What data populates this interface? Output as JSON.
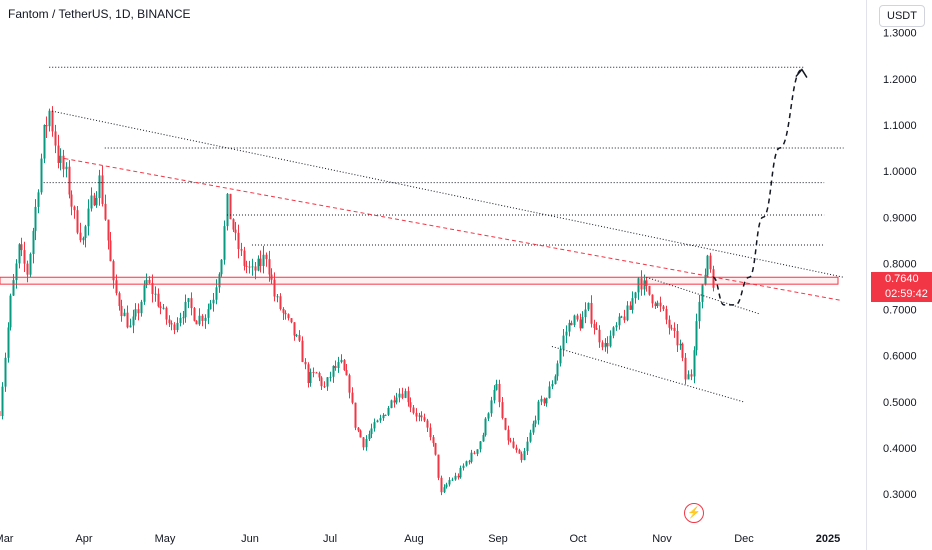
{
  "header": {
    "symbol_title": "Fantom / TetherUS, 1D, BINANCE",
    "currency_button": "USDT"
  },
  "price_label": {
    "price": "0.7640",
    "countdown": "02:59:42"
  },
  "colors": {
    "up": "#089981",
    "down": "#f23645",
    "accent_red": "#f23645"
  },
  "chart_data": {
    "type": "candlestick",
    "title": "Fantom / TetherUS, 1D, BINANCE",
    "ylim": [
      0.24,
      1.36
    ],
    "y_ticks": [
      "1.3000",
      "1.2000",
      "1.1000",
      "1.0000",
      "0.9000",
      "0.8000",
      "0.7000",
      "0.6000",
      "0.5000",
      "0.4000",
      "0.3000"
    ],
    "x_ticks": [
      {
        "label": "Mar",
        "bold": false
      },
      {
        "label": "Apr",
        "bold": false
      },
      {
        "label": "May",
        "bold": false
      },
      {
        "label": "Jun",
        "bold": false
      },
      {
        "label": "Jul",
        "bold": false
      },
      {
        "label": "Aug",
        "bold": false
      },
      {
        "label": "Sep",
        "bold": false
      },
      {
        "label": "Oct",
        "bold": false
      },
      {
        "label": "Nov",
        "bold": false
      },
      {
        "label": "Dec",
        "bold": false
      },
      {
        "label": "2025",
        "bold": true
      }
    ],
    "price_path": [
      {
        "x": "2024-02-28",
        "y": 0.48
      },
      {
        "x": "2024-03-03",
        "y": 0.72
      },
      {
        "x": "2024-03-06",
        "y": 0.83
      },
      {
        "x": "2024-03-09",
        "y": 0.78
      },
      {
        "x": "2024-03-12",
        "y": 0.92
      },
      {
        "x": "2024-03-15",
        "y": 1.08
      },
      {
        "x": "2024-03-17",
        "y": 1.13
      },
      {
        "x": "2024-03-20",
        "y": 1.03
      },
      {
        "x": "2024-03-23",
        "y": 0.99
      },
      {
        "x": "2024-03-26",
        "y": 0.9
      },
      {
        "x": "2024-03-29",
        "y": 0.85
      },
      {
        "x": "2024-04-01",
        "y": 0.93
      },
      {
        "x": "2024-04-04",
        "y": 0.98
      },
      {
        "x": "2024-04-06",
        "y": 0.9
      },
      {
        "x": "2024-04-09",
        "y": 0.75
      },
      {
        "x": "2024-04-12",
        "y": 0.7
      },
      {
        "x": "2024-04-15",
        "y": 0.66
      },
      {
        "x": "2024-04-18",
        "y": 0.7
      },
      {
        "x": "2024-04-21",
        "y": 0.76
      },
      {
        "x": "2024-04-24",
        "y": 0.73
      },
      {
        "x": "2024-04-27",
        "y": 0.69
      },
      {
        "x": "2024-04-30",
        "y": 0.66
      },
      {
        "x": "2024-05-03",
        "y": 0.69
      },
      {
        "x": "2024-05-06",
        "y": 0.71
      },
      {
        "x": "2024-05-09",
        "y": 0.68
      },
      {
        "x": "2024-05-12",
        "y": 0.69
      },
      {
        "x": "2024-05-15",
        "y": 0.73
      },
      {
        "x": "2024-05-18",
        "y": 0.82
      },
      {
        "x": "2024-05-20",
        "y": 0.93
      },
      {
        "x": "2024-05-23",
        "y": 0.85
      },
      {
        "x": "2024-05-26",
        "y": 0.8
      },
      {
        "x": "2024-05-29",
        "y": 0.78
      },
      {
        "x": "2024-06-01",
        "y": 0.8
      },
      {
        "x": "2024-06-03",
        "y": 0.82
      },
      {
        "x": "2024-06-06",
        "y": 0.73
      },
      {
        "x": "2024-06-09",
        "y": 0.69
      },
      {
        "x": "2024-06-12",
        "y": 0.66
      },
      {
        "x": "2024-06-15",
        "y": 0.62
      },
      {
        "x": "2024-06-18",
        "y": 0.55
      },
      {
        "x": "2024-06-21",
        "y": 0.56
      },
      {
        "x": "2024-06-24",
        "y": 0.53
      },
      {
        "x": "2024-06-27",
        "y": 0.57
      },
      {
        "x": "2024-06-30",
        "y": 0.58
      },
      {
        "x": "2024-07-03",
        "y": 0.53
      },
      {
        "x": "2024-07-05",
        "y": 0.45
      },
      {
        "x": "2024-07-08",
        "y": 0.41
      },
      {
        "x": "2024-07-11",
        "y": 0.44
      },
      {
        "x": "2024-07-14",
        "y": 0.46
      },
      {
        "x": "2024-07-17",
        "y": 0.49
      },
      {
        "x": "2024-07-20",
        "y": 0.52
      },
      {
        "x": "2024-07-23",
        "y": 0.52
      },
      {
        "x": "2024-07-26",
        "y": 0.48
      },
      {
        "x": "2024-07-29",
        "y": 0.46
      },
      {
        "x": "2024-08-01",
        "y": 0.43
      },
      {
        "x": "2024-08-03",
        "y": 0.38
      },
      {
        "x": "2024-08-05",
        "y": 0.3
      },
      {
        "x": "2024-08-08",
        "y": 0.33
      },
      {
        "x": "2024-08-11",
        "y": 0.34
      },
      {
        "x": "2024-08-14",
        "y": 0.37
      },
      {
        "x": "2024-08-17",
        "y": 0.39
      },
      {
        "x": "2024-08-20",
        "y": 0.43
      },
      {
        "x": "2024-08-23",
        "y": 0.51
      },
      {
        "x": "2024-08-25",
        "y": 0.53
      },
      {
        "x": "2024-08-28",
        "y": 0.43
      },
      {
        "x": "2024-08-31",
        "y": 0.4
      },
      {
        "x": "2024-09-03",
        "y": 0.37
      },
      {
        "x": "2024-09-06",
        "y": 0.43
      },
      {
        "x": "2024-09-09",
        "y": 0.49
      },
      {
        "x": "2024-09-12",
        "y": 0.51
      },
      {
        "x": "2024-09-15",
        "y": 0.56
      },
      {
        "x": "2024-09-18",
        "y": 0.64
      },
      {
        "x": "2024-09-21",
        "y": 0.68
      },
      {
        "x": "2024-09-24",
        "y": 0.67
      },
      {
        "x": "2024-09-27",
        "y": 0.7
      },
      {
        "x": "2024-09-30",
        "y": 0.65
      },
      {
        "x": "2024-10-03",
        "y": 0.62
      },
      {
        "x": "2024-10-06",
        "y": 0.65
      },
      {
        "x": "2024-10-09",
        "y": 0.68
      },
      {
        "x": "2024-10-12",
        "y": 0.7
      },
      {
        "x": "2024-10-15",
        "y": 0.77
      },
      {
        "x": "2024-10-18",
        "y": 0.74
      },
      {
        "x": "2024-10-21",
        "y": 0.72
      },
      {
        "x": "2024-10-24",
        "y": 0.69
      },
      {
        "x": "2024-10-27",
        "y": 0.65
      },
      {
        "x": "2024-10-30",
        "y": 0.62
      },
      {
        "x": "2024-11-01",
        "y": 0.55
      },
      {
        "x": "2024-11-03",
        "y": 0.56
      },
      {
        "x": "2024-11-05",
        "y": 0.69
      },
      {
        "x": "2024-11-07",
        "y": 0.74
      },
      {
        "x": "2024-11-09",
        "y": 0.82
      },
      {
        "x": "2024-11-11",
        "y": 0.764
      }
    ],
    "horizontal_levels": [
      {
        "x_from": "2024-03-17",
        "x_to": "2024-12-14",
        "y": 1.225
      },
      {
        "x_from": "2024-04-06",
        "x_to": "2024-12-28",
        "y": 1.05
      },
      {
        "x_from": "2024-03-15",
        "x_to": "2024-12-21",
        "y": 0.975
      },
      {
        "x_from": "2024-05-20",
        "x_to": "2024-12-21",
        "y": 0.905
      },
      {
        "x_from": "2024-05-29",
        "x_to": "2024-12-21",
        "y": 0.84
      }
    ],
    "trend_lines": [
      {
        "style": "dotted-gray",
        "from": {
          "x": "2024-03-18",
          "y": 1.13
        },
        "to": {
          "x": "2024-12-28",
          "y": 0.77
        }
      },
      {
        "style": "dashed-red",
        "from": {
          "x": "2024-03-20",
          "y": 1.03
        },
        "to": {
          "x": "2024-12-27",
          "y": 0.72
        }
      },
      {
        "style": "dotted-gray",
        "from": {
          "x": "2024-10-18",
          "y": 0.77
        },
        "to": {
          "x": "2024-11-28",
          "y": 0.69
        }
      },
      {
        "style": "dotted-gray",
        "from": {
          "x": "2024-09-14",
          "y": 0.62
        },
        "to": {
          "x": "2024-11-22",
          "y": 0.5
        }
      }
    ],
    "zone": {
      "y_low": 0.755,
      "y_high": 0.77
    },
    "projection_path": [
      {
        "x": "2024-11-11",
        "y": 0.77
      },
      {
        "x": "2024-11-15",
        "y": 0.71
      },
      {
        "x": "2024-11-19",
        "y": 0.71
      },
      {
        "x": "2024-11-24",
        "y": 0.77
      },
      {
        "x": "2024-11-29",
        "y": 0.9
      },
      {
        "x": "2024-12-05",
        "y": 1.05
      },
      {
        "x": "2024-12-13",
        "y": 1.22
      }
    ]
  }
}
